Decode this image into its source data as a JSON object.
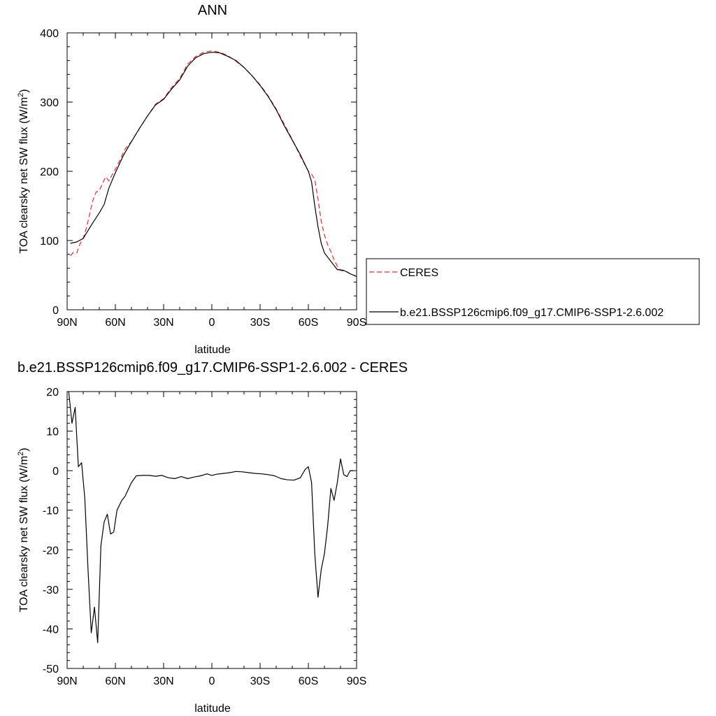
{
  "chart_data": [
    {
      "type": "line",
      "title": "ANN",
      "xlabel": "latitude",
      "ylabel": "TOA clearsky net SW flux (W/m",
      "ylabel_sup": "2",
      "ylabel_end": ")",
      "xlim": [
        90,
        -90
      ],
      "ylim": [
        0,
        400
      ],
      "x_ticks": [
        90,
        60,
        30,
        0,
        -30,
        -60,
        -90
      ],
      "x_tick_labels": [
        "90N",
        "60N",
        "30N",
        "0",
        "30S",
        "60S",
        "90S"
      ],
      "y_ticks": [
        0,
        100,
        200,
        300,
        400
      ],
      "y_tick_labels": [
        "0",
        "100",
        "200",
        "300",
        "400"
      ],
      "grid": false,
      "legend_position": "right",
      "series": [
        {
          "name": "CERES",
          "color": "#e8272a",
          "dash": "dashed",
          "points": [
            [
              88,
              78
            ],
            [
              86,
              83
            ],
            [
              84,
              82
            ],
            [
              82,
              95
            ],
            [
              80,
              103
            ],
            [
              78,
              118
            ],
            [
              76,
              138
            ],
            [
              74,
              158
            ],
            [
              72,
              170
            ],
            [
              70,
              172
            ],
            [
              68,
              182
            ],
            [
              66,
              192
            ],
            [
              64,
              186
            ],
            [
              62,
              195
            ],
            [
              60,
              203
            ],
            [
              57,
              217
            ],
            [
              54,
              232
            ],
            [
              50,
              243
            ],
            [
              45,
              262
            ],
            [
              40,
              280
            ],
            [
              35,
              297
            ],
            [
              30,
              305
            ],
            [
              25,
              321
            ],
            [
              20,
              334
            ],
            [
              15,
              355
            ],
            [
              10,
              366
            ],
            [
              5,
              372
            ],
            [
              0,
              374
            ],
            [
              -5,
              372
            ],
            [
              -10,
              367
            ],
            [
              -15,
              359
            ],
            [
              -20,
              350
            ],
            [
              -25,
              338
            ],
            [
              -30,
              325
            ],
            [
              -35,
              309
            ],
            [
              -40,
              290
            ],
            [
              -45,
              268
            ],
            [
              -50,
              246
            ],
            [
              -55,
              222
            ],
            [
              -60,
              200
            ],
            [
              -62,
              196
            ],
            [
              -64,
              188
            ],
            [
              -66,
              160
            ],
            [
              -68,
              128
            ],
            [
              -70,
              108
            ],
            [
              -72,
              94
            ],
            [
              -74,
              84
            ],
            [
              -76,
              72
            ],
            [
              -78,
              63
            ],
            [
              -80,
              57
            ],
            [
              -82,
              56
            ],
            [
              -84,
              55
            ],
            [
              -86,
              52
            ],
            [
              -88,
              50
            ],
            [
              -90,
              48
            ]
          ]
        },
        {
          "name": "b.e21.BSSP126cmip6.f09_g17.CMIP6-SSP1-2.6.002",
          "color": "#000000",
          "dash": "solid",
          "points": [
            [
              88,
              96
            ],
            [
              84,
              98
            ],
            [
              80,
              103
            ],
            [
              75,
              122
            ],
            [
              70,
              140
            ],
            [
              67,
              152
            ],
            [
              64,
              176
            ],
            [
              60,
              198
            ],
            [
              55,
              223
            ],
            [
              50,
              243
            ],
            [
              45,
              262
            ],
            [
              40,
              280
            ],
            [
              35,
              296
            ],
            [
              30,
              304
            ],
            [
              25,
              319
            ],
            [
              20,
              332
            ],
            [
              15,
              352
            ],
            [
              10,
              364
            ],
            [
              5,
              370
            ],
            [
              0,
              372
            ],
            [
              -5,
              371
            ],
            [
              -10,
              366
            ],
            [
              -15,
              360
            ],
            [
              -20,
              350
            ],
            [
              -25,
              338
            ],
            [
              -30,
              324
            ],
            [
              -35,
              308
            ],
            [
              -40,
              289
            ],
            [
              -45,
              266
            ],
            [
              -50,
              245
            ],
            [
              -55,
              224
            ],
            [
              -60,
              200
            ],
            [
              -62,
              185
            ],
            [
              -64,
              150
            ],
            [
              -66,
              120
            ],
            [
              -68,
              96
            ],
            [
              -70,
              82
            ],
            [
              -74,
              70
            ],
            [
              -78,
              58
            ],
            [
              -82,
              57
            ],
            [
              -86,
              52
            ],
            [
              -90,
              48
            ]
          ]
        }
      ]
    },
    {
      "type": "line",
      "title": "b.e21.BSSP126cmip6.f09_g17.CMIP6-SSP1-2.6.002 - CERES",
      "xlabel": "latitude",
      "ylabel": "TOA clearsky net SW flux (W/m",
      "ylabel_sup": "2",
      "ylabel_end": ")",
      "xlim": [
        90,
        -90
      ],
      "ylim": [
        -50,
        20
      ],
      "x_ticks": [
        90,
        60,
        30,
        0,
        -30,
        -60,
        -90
      ],
      "x_tick_labels": [
        "90N",
        "60N",
        "30N",
        "0",
        "30S",
        "60S",
        "90S"
      ],
      "y_ticks": [
        -50,
        -40,
        -30,
        -20,
        -10,
        0,
        10,
        20
      ],
      "y_tick_labels": [
        "-50",
        "-40",
        "-30",
        "-20",
        "-10",
        "0",
        "10",
        "20"
      ],
      "grid": false,
      "series": [
        {
          "color": "#000000",
          "dash": "solid",
          "points": [
            [
              89,
              20
            ],
            [
              87,
              12
            ],
            [
              85,
              16
            ],
            [
              83,
              1
            ],
            [
              81,
              2
            ],
            [
              79,
              -7
            ],
            [
              77,
              -25
            ],
            [
              75,
              -41
            ],
            [
              73,
              -34.5
            ],
            [
              71,
              -43.5
            ],
            [
              69,
              -19
            ],
            [
              67,
              -13
            ],
            [
              65,
              -11
            ],
            [
              63,
              -16
            ],
            [
              61,
              -15.5
            ],
            [
              59,
              -10
            ],
            [
              56,
              -7.5
            ],
            [
              54,
              -6.5
            ],
            [
              50,
              -3
            ],
            [
              47,
              -1.3
            ],
            [
              43,
              -1.2
            ],
            [
              39,
              -1.2
            ],
            [
              35,
              -1.4
            ],
            [
              31,
              -1.2
            ],
            [
              27,
              -1.8
            ],
            [
              23,
              -2
            ],
            [
              19,
              -1.5
            ],
            [
              15,
              -2
            ],
            [
              11,
              -1.6
            ],
            [
              7,
              -1.3
            ],
            [
              3,
              -0.8
            ],
            [
              0,
              -1.2
            ],
            [
              -3,
              -0.9
            ],
            [
              -7,
              -0.7
            ],
            [
              -11,
              -0.5
            ],
            [
              -15,
              -0.2
            ],
            [
              -19,
              -0.3
            ],
            [
              -23,
              -0.5
            ],
            [
              -27,
              -0.7
            ],
            [
              -31,
              -0.8
            ],
            [
              -35,
              -1
            ],
            [
              -39,
              -1.3
            ],
            [
              -43,
              -2
            ],
            [
              -47,
              -2.3
            ],
            [
              -51,
              -2.4
            ],
            [
              -55,
              -1.8
            ],
            [
              -58,
              0.3
            ],
            [
              -60,
              1
            ],
            [
              -62,
              -3
            ],
            [
              -64,
              -21
            ],
            [
              -66,
              -32
            ],
            [
              -68,
              -25
            ],
            [
              -70,
              -21
            ],
            [
              -72,
              -14
            ],
            [
              -74,
              -4.5
            ],
            [
              -76,
              -7.5
            ],
            [
              -78,
              -3
            ],
            [
              -80,
              3
            ],
            [
              -82,
              -1
            ],
            [
              -84,
              -1.5
            ],
            [
              -86,
              0
            ],
            [
              -88,
              0
            ]
          ]
        }
      ]
    }
  ]
}
